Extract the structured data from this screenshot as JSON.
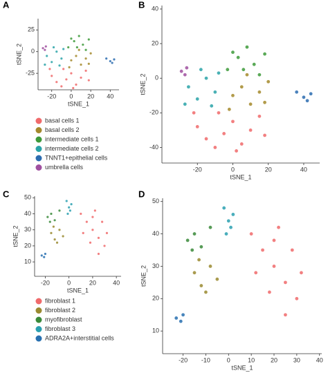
{
  "chart_data": [
    {
      "type": "scatter",
      "panel": "A",
      "xlabel": "tSNE_1",
      "ylabel": "tSNE_2",
      "xlim": [
        -34,
        49
      ],
      "ylim": [
        -44,
        38
      ],
      "xticks": [
        -20,
        0,
        20,
        40
      ],
      "yticks": [
        -25,
        0,
        25
      ],
      "legend": true,
      "series": [
        {
          "name": "basal cells 1",
          "color": "#f06a6b",
          "x": [
            -20,
            -15,
            -10,
            -5,
            0,
            5,
            10,
            15,
            -22,
            -8,
            2,
            18
          ],
          "y": [
            -28,
            -35,
            -40,
            -32,
            -25,
            -38,
            -30,
            -22,
            -20,
            -20,
            -42,
            -33
          ]
        },
        {
          "name": "basal cells 2",
          "color": "#a4892c",
          "x": [
            0,
            5,
            10,
            15,
            20,
            8,
            -2,
            18
          ],
          "y": [
            -10,
            -5,
            -15,
            -8,
            -2,
            2,
            -18,
            -14
          ]
        },
        {
          "name": "intermediate cells 1",
          "color": "#3d9a3a",
          "x": [
            -3,
            3,
            8,
            12,
            18,
            6,
            0,
            15
          ],
          "y": [
            5,
            12,
            18,
            8,
            14,
            5,
            15,
            2
          ]
        },
        {
          "name": "intermediate cells 2",
          "color": "#2aa3a8",
          "x": [
            -25,
            -20,
            -15,
            -10,
            -18,
            -8,
            -27,
            -12
          ],
          "y": [
            -5,
            -12,
            0,
            -8,
            5,
            3,
            -15,
            -16
          ]
        },
        {
          "name": "TNNT1+epithelial cells",
          "color": "#2c6cb0",
          "x": [
            36,
            40,
            44,
            42
          ],
          "y": [
            -8,
            -11,
            -9,
            -13
          ]
        },
        {
          "name": "umbrella cells",
          "color": "#a050a0",
          "x": [
            -29,
            -26,
            -27
          ],
          "y": [
            4,
            6,
            2
          ]
        }
      ]
    },
    {
      "type": "scatter",
      "panel": "B",
      "xlabel": "tSNE_1",
      "ylabel": "tSNE_2",
      "xlim": [
        -40,
        49
      ],
      "ylim": [
        -49,
        42
      ],
      "xticks": [
        -20,
        0,
        20,
        40
      ],
      "yticks": [
        -40,
        -20,
        0,
        20,
        40
      ],
      "legend": false,
      "series": [
        {
          "color": "#f06a6b",
          "x": [
            -20,
            -15,
            -10,
            -5,
            0,
            5,
            10,
            15,
            -22,
            -8,
            2,
            18
          ],
          "y": [
            -28,
            -35,
            -40,
            -32,
            -25,
            -38,
            -30,
            -22,
            -20,
            -20,
            -42,
            -33
          ]
        },
        {
          "color": "#a4892c",
          "x": [
            0,
            5,
            10,
            15,
            20,
            8,
            -2,
            18
          ],
          "y": [
            -10,
            -5,
            -15,
            -8,
            -2,
            2,
            -18,
            -14
          ]
        },
        {
          "color": "#3d9a3a",
          "x": [
            -3,
            3,
            8,
            12,
            18,
            6,
            0,
            15
          ],
          "y": [
            5,
            12,
            18,
            8,
            14,
            5,
            15,
            2
          ]
        },
        {
          "color": "#2aa3a8",
          "x": [
            -25,
            -20,
            -15,
            -10,
            -18,
            -8,
            -27,
            -12
          ],
          "y": [
            -5,
            -12,
            0,
            -8,
            5,
            3,
            -15,
            -16
          ]
        },
        {
          "color": "#2c6cb0",
          "x": [
            36,
            40,
            44,
            42
          ],
          "y": [
            -8,
            -11,
            -9,
            -13
          ]
        },
        {
          "color": "#a050a0",
          "x": [
            -29,
            -26,
            -27
          ],
          "y": [
            4,
            6,
            2
          ]
        }
      ]
    },
    {
      "type": "scatter",
      "panel": "C",
      "xlabel": "tSNE_1",
      "ylabel": "tSNE_2",
      "xlim": [
        -29,
        44
      ],
      "ylim": [
        1,
        51
      ],
      "xticks": [
        -20,
        0,
        20,
        40
      ],
      "yticks": [
        10,
        20,
        30,
        40,
        50
      ],
      "legend": true,
      "series": [
        {
          "name": "fibroblast 1",
          "color": "#f06a6b",
          "x": [
            10,
            15,
            20,
            25,
            30,
            18,
            28,
            22,
            32,
            12,
            25,
            20
          ],
          "y": [
            40,
            35,
            30,
            25,
            20,
            22,
            35,
            42,
            28,
            28,
            15,
            38
          ]
        },
        {
          "name": "fibroblast 2",
          "color": "#9a8a30",
          "x": [
            -15,
            -12,
            -8,
            -5,
            -10,
            -13
          ],
          "y": [
            28,
            24,
            30,
            26,
            22,
            32
          ]
        },
        {
          "name": "myofibroblast",
          "color": "#3a8a3a",
          "x": [
            -18,
            -15,
            -12,
            -8,
            -16
          ],
          "y": [
            38,
            40,
            36,
            42,
            35
          ]
        },
        {
          "name": "fibroblast 3",
          "color": "#2aa0b0",
          "x": [
            -2,
            0,
            2,
            -1,
            1
          ],
          "y": [
            48,
            44,
            46,
            40,
            42
          ]
        },
        {
          "name": "ADRA2A+interstitial cells",
          "color": "#2870b0",
          "x": [
            -23,
            -21,
            -20
          ],
          "y": [
            14,
            13,
            15
          ]
        }
      ]
    },
    {
      "type": "scatter",
      "panel": "D",
      "xlabel": "tSNE_1",
      "ylabel": "tSNE_2",
      "xlim": [
        -29,
        41
      ],
      "ylim": [
        3,
        51
      ],
      "xticks": [
        -20,
        -10,
        0,
        10,
        20,
        30,
        40
      ],
      "yticks": [
        10,
        20,
        30,
        40,
        50
      ],
      "legend": false,
      "series": [
        {
          "color": "#f06a6b",
          "x": [
            10,
            15,
            20,
            25,
            30,
            18,
            28,
            22,
            32,
            12,
            25,
            20
          ],
          "y": [
            40,
            35,
            30,
            25,
            20,
            22,
            35,
            42,
            28,
            28,
            15,
            38
          ]
        },
        {
          "color": "#9a8a30",
          "x": [
            -15,
            -12,
            -8,
            -5,
            -10,
            -13
          ],
          "y": [
            28,
            24,
            30,
            26,
            22,
            32
          ]
        },
        {
          "color": "#3a8a3a",
          "x": [
            -18,
            -15,
            -12,
            -8,
            -16
          ],
          "y": [
            38,
            40,
            36,
            42,
            35
          ]
        },
        {
          "color": "#2aa0b0",
          "x": [
            -2,
            0,
            2,
            -1,
            1
          ],
          "y": [
            48,
            44,
            46,
            40,
            42
          ]
        },
        {
          "color": "#2870b0",
          "x": [
            -23,
            -21,
            -20
          ],
          "y": [
            14,
            13,
            15
          ]
        }
      ]
    }
  ]
}
